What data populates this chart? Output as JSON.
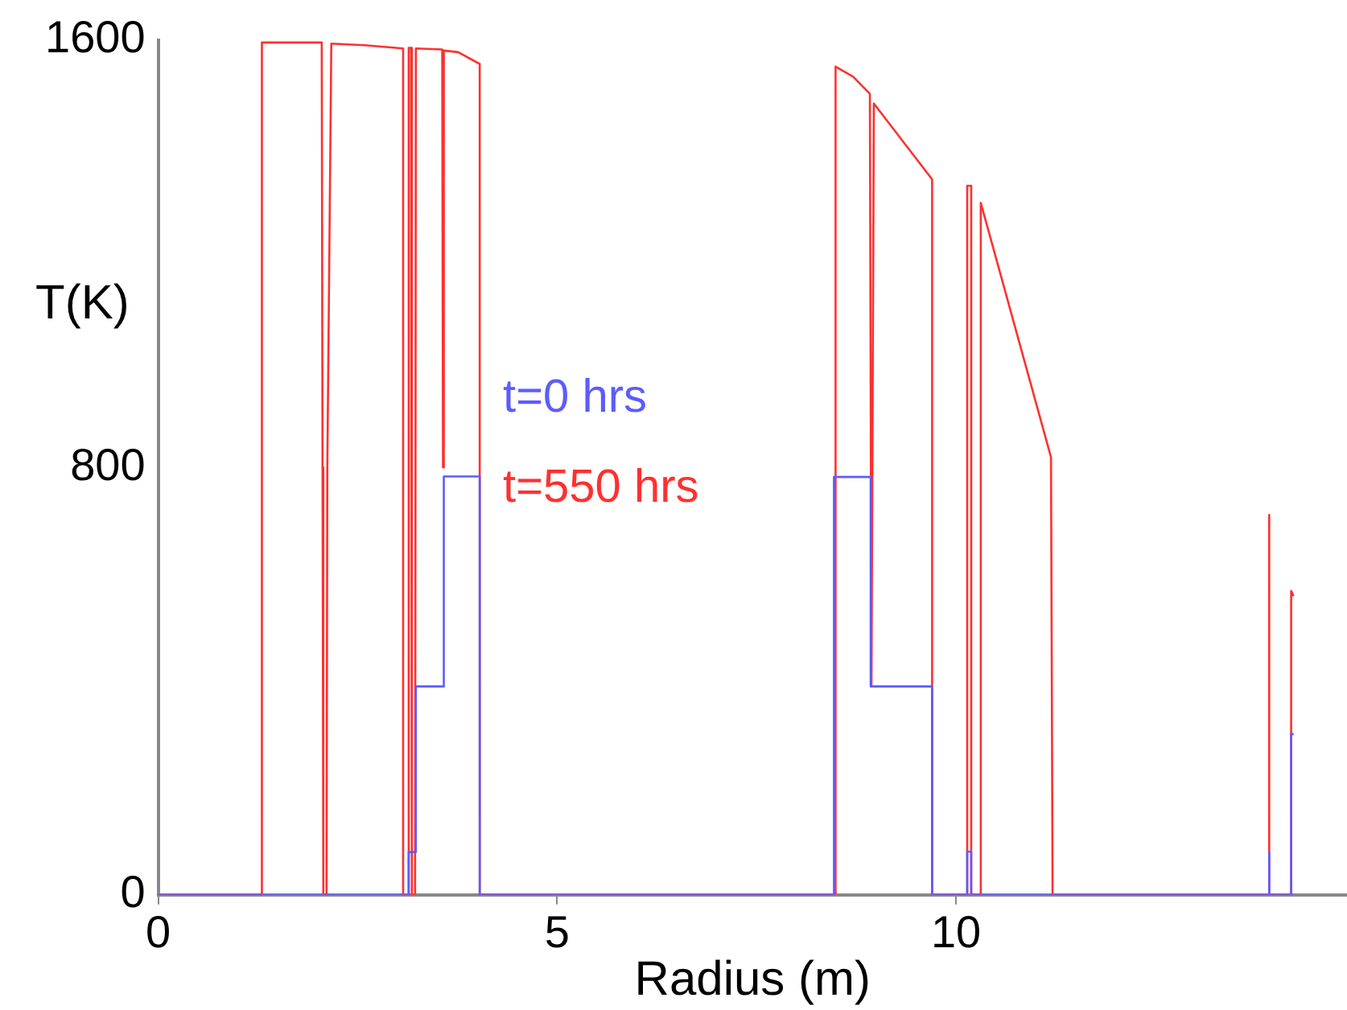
{
  "chart_data": {
    "type": "line",
    "xlabel": "Radius (m)",
    "ylabel": "T(K)",
    "xlim": [
      0,
      14.9
    ],
    "xticks": [
      {
        "value": 0,
        "label": "0"
      },
      5,
      10
    ],
    "ylim": [
      0,
      1600
    ],
    "yticks": [
      0,
      800,
      1600
    ],
    "grid": false,
    "marker": "none",
    "line_style": "solid",
    "series": [
      {
        "name": "t=0 hrs",
        "color": "#5c5cff",
        "x": [
          0,
          3.14,
          3.14,
          3.23,
          3.23,
          3.58,
          3.58,
          4.03,
          4.03,
          8.47,
          8.47,
          8.93,
          8.93,
          9.7,
          9.7,
          10.14,
          10.14,
          10.19,
          10.19,
          13.92,
          13.92,
          13.93,
          14.2,
          14.2,
          14.23
        ],
        "values": [
          0,
          0,
          80,
          80,
          390,
          390,
          783,
          783,
          0,
          0,
          782,
          782,
          390,
          390,
          0,
          0,
          81,
          81,
          0,
          0,
          80,
          0,
          0,
          302,
          300
        ]
      },
      {
        "name": "t=550 hrs",
        "color": "#ff3030",
        "x": [
          0,
          1.3,
          1.3,
          2.05,
          2.06,
          2.07,
          2.11,
          2.12,
          2.17,
          2.59,
          3.07,
          3.07,
          3.13,
          3.14,
          3.17,
          3.18,
          3.22,
          3.23,
          3.56,
          3.57,
          3.58,
          3.76,
          4.03,
          4.03,
          8.49,
          8.49,
          8.71,
          8.92,
          8.94,
          8.97,
          9.7,
          9.7,
          10.14,
          10.14,
          10.19,
          10.19,
          10.31,
          10.31,
          11.19,
          11.21,
          13.92,
          13.92,
          13.93,
          14.2,
          14.2,
          14.23
        ],
        "values": [
          0,
          0,
          1595,
          1595,
          800,
          0,
          0,
          800,
          1593,
          1590,
          1584,
          0,
          0,
          1585,
          1585,
          0,
          0,
          1584,
          1582,
          800,
          1580,
          1577,
          1555,
          0,
          0,
          1550,
          1531,
          1499,
          390,
          1481,
          1339,
          0,
          0,
          1327,
          1327,
          0,
          0,
          1295,
          819,
          0,
          0,
          711,
          0,
          0,
          569,
          559
        ]
      }
    ]
  }
}
